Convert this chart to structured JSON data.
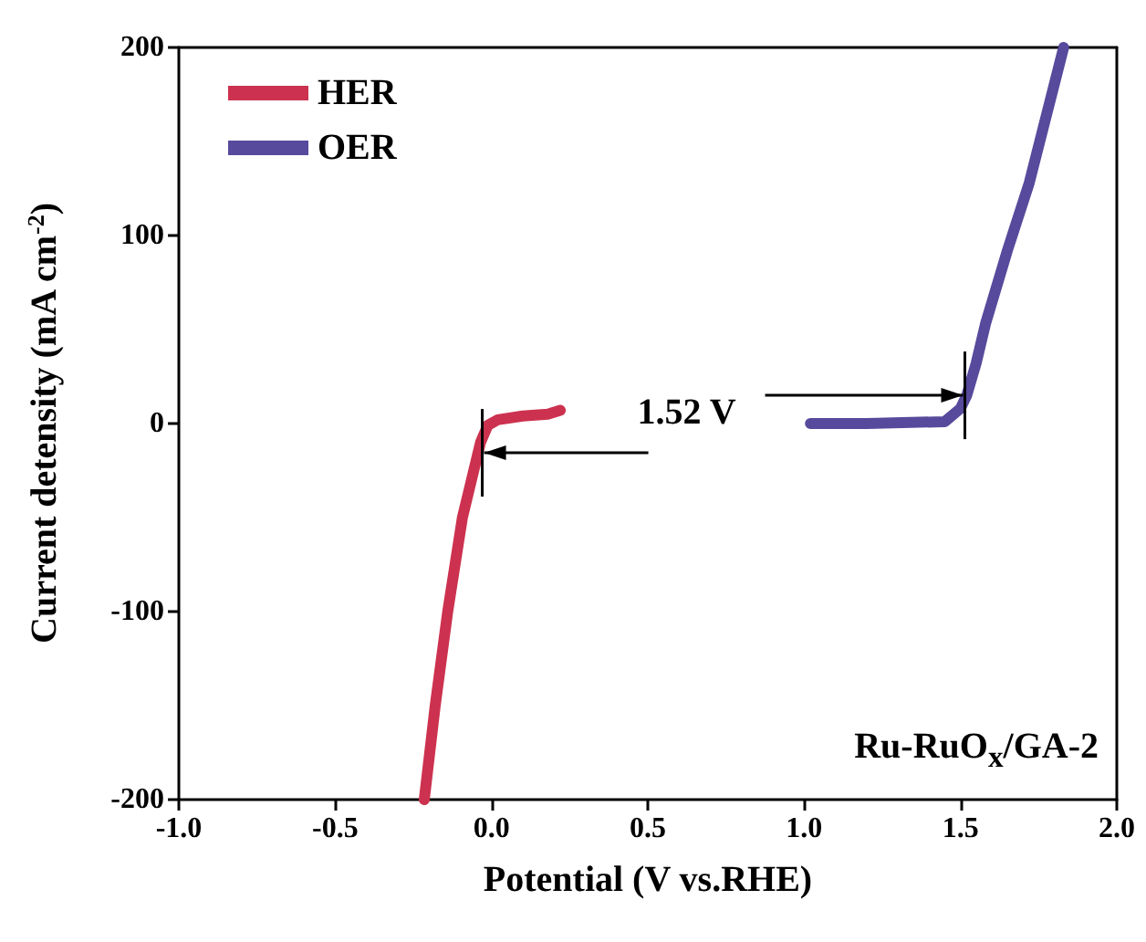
{
  "chart_data": {
    "type": "line",
    "xlabel": "Potential (V vs.RHE)",
    "ylabel": "Current detensity (mA cm$^{-2}$)",
    "xlim": [
      -1.0,
      2.0
    ],
    "ylim": [
      -200,
      200
    ],
    "xticks": [
      {
        "value": -1.0,
        "label": "-1.0"
      },
      -0.5,
      {
        "value": 0,
        "label": "0.0"
      },
      0.5,
      {
        "value": 1.0,
        "label": "1.0"
      },
      1.5,
      {
        "value": 2.0,
        "label": "2.0"
      }
    ],
    "yticks": [
      -200,
      -100,
      0,
      100,
      200
    ],
    "grid": false,
    "legend": "top left",
    "marker": "none",
    "line_style": "solid",
    "series": [
      {
        "name": "HER",
        "color": "#cc324f",
        "x": [
          -0.215,
          -0.18,
          -0.14,
          -0.093,
          -0.035,
          -0.012,
          0.02,
          0.1,
          0.18,
          0.22
        ],
        "values": [
          -200,
          -150,
          -100,
          -50,
          -10,
          -1,
          2,
          4,
          5,
          7
        ]
      },
      {
        "name": "OER",
        "color": "#574a9c",
        "x": [
          1.02,
          1.2,
          1.45,
          1.5,
          1.52,
          1.55,
          1.58,
          1.65,
          1.72,
          1.83
        ],
        "values": [
          0,
          0,
          1,
          8,
          15,
          32,
          53,
          92,
          128,
          200
        ]
      }
    ],
    "annotations": [
      {
        "text": "1.52 V",
        "x": 1.52,
        "y": 15
      },
      "Ru-RuO$_{x}$/GA-2"
    ]
  }
}
